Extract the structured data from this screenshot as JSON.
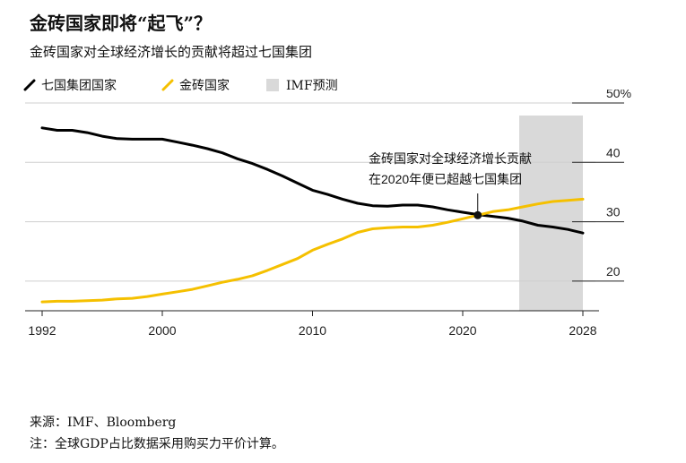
{
  "title": "金砖国家即将“起飞”？",
  "subtitle": "金砖国家对全球经济增长的贡献将超过七国集团",
  "legend": {
    "g7_label": "七国集团国家",
    "brics_label": "金砖国家",
    "imf_label": "IMF预测"
  },
  "annotation": {
    "line1": "金砖国家对全球经济增长贡献",
    "line2": "在2020年便已超越七国集团"
  },
  "colors": {
    "g7": "#000000",
    "brics": "#f5c000",
    "forecast_band": "#d9d9d9",
    "grid": "#cfcfcf"
  },
  "footer": {
    "source": "来源：IMF、Bloomberg",
    "note": "注：全球GDP占比数据采用购买力平价计算。"
  },
  "chart_data": {
    "type": "line",
    "unit": "%",
    "x_ticks": [
      "1992",
      "2000",
      "2010",
      "2020",
      "2028"
    ],
    "y_ticks": [
      "50%",
      "40",
      "30",
      "20"
    ],
    "ylim": [
      15,
      50
    ],
    "xlim": [
      1992,
      2029
    ],
    "forecast_range": [
      2024,
      2028
    ],
    "annotation_point": {
      "x": 2021,
      "y": 31.1
    },
    "x": [
      1992,
      1993,
      1994,
      1995,
      1996,
      1997,
      1998,
      1999,
      2000,
      2001,
      2002,
      2003,
      2004,
      2005,
      2006,
      2007,
      2008,
      2009,
      2010,
      2011,
      2012,
      2013,
      2014,
      2015,
      2016,
      2017,
      2018,
      2019,
      2020,
      2021,
      2022,
      2023,
      2024,
      2025,
      2026,
      2027,
      2028
    ],
    "series": [
      {
        "name": "七国集团国家",
        "values": [
          45.8,
          45.4,
          45.4,
          45.0,
          44.4,
          44.0,
          43.9,
          43.9,
          43.9,
          43.4,
          42.9,
          42.3,
          41.6,
          40.6,
          39.8,
          38.8,
          37.7,
          36.5,
          35.3,
          34.6,
          33.8,
          33.1,
          32.7,
          32.6,
          32.8,
          32.8,
          32.5,
          32.0,
          31.6,
          31.2,
          30.9,
          30.6,
          30.1,
          29.4,
          29.1,
          28.7,
          28.1
        ]
      },
      {
        "name": "金砖国家",
        "values": [
          16.5,
          16.6,
          16.6,
          16.7,
          16.8,
          17.0,
          17.1,
          17.4,
          17.8,
          18.2,
          18.6,
          19.2,
          19.8,
          20.3,
          20.9,
          21.8,
          22.8,
          23.8,
          25.2,
          26.2,
          27.1,
          28.2,
          28.8,
          29.0,
          29.1,
          29.1,
          29.4,
          29.9,
          30.5,
          31.1,
          31.7,
          32.0,
          32.5,
          33.0,
          33.4,
          33.6,
          33.8
        ]
      }
    ]
  }
}
